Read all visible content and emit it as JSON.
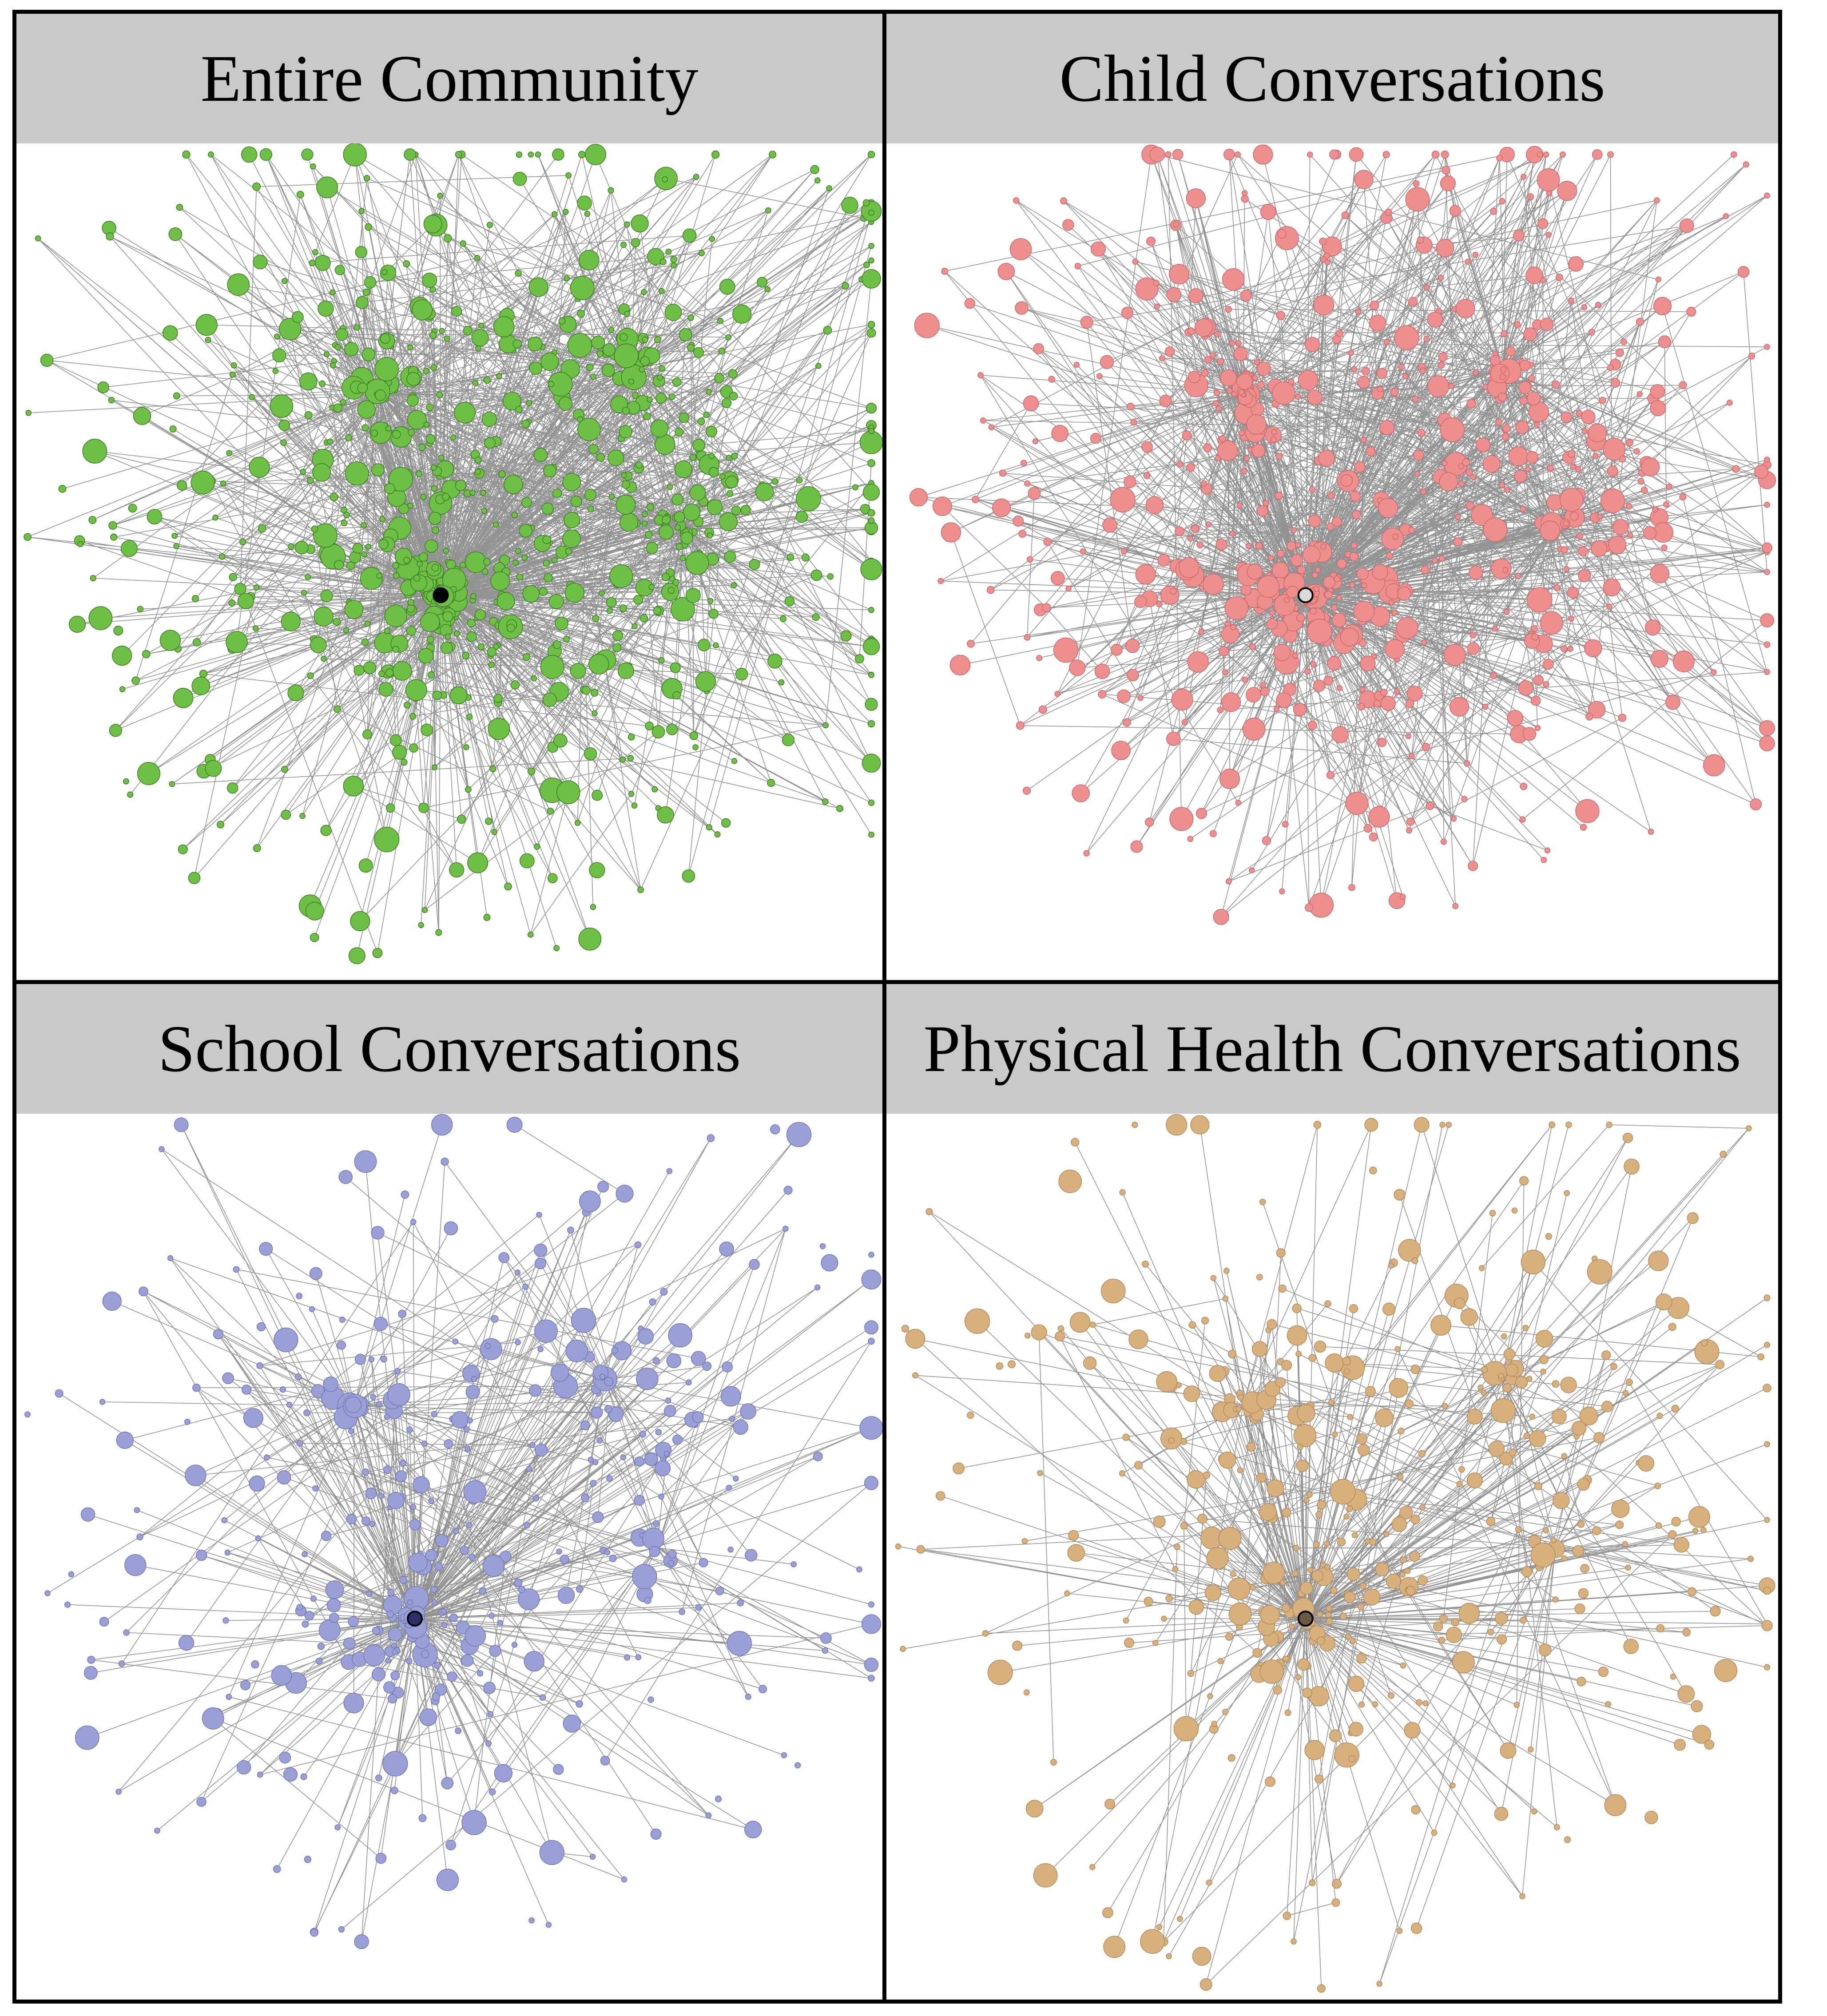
{
  "figure": {
    "panels": [
      {
        "title": "Entire Community",
        "fill": "#6dbf45",
        "stroke": "#3f7a24",
        "nodes": 900,
        "edges": 1700,
        "hubEdges": 520,
        "seed": 11,
        "spread": 1.0,
        "hubX": 0.49,
        "hubY": 0.54,
        "hubColor": "#000000"
      },
      {
        "title": "Child Conversations",
        "fill": "#ee8f8f",
        "stroke": "#c86a6a",
        "nodes": 760,
        "edges": 1500,
        "hubEdges": 560,
        "seed": 23,
        "spread": 0.95,
        "hubX": 0.47,
        "hubY": 0.54,
        "hubColor": "#d9d9d9"
      },
      {
        "title": "School Conversations",
        "fill": "#9aa0d6",
        "stroke": "#7177b5",
        "nodes": 420,
        "edges": 420,
        "hubEdges": 230,
        "seed": 37,
        "spread": 0.9,
        "hubX": 0.46,
        "hubY": 0.57,
        "hubColor": "#2c2f6a"
      },
      {
        "title": "Physical Health Conversations",
        "fill": "#d7b07e",
        "stroke": "#b18a58",
        "nodes": 470,
        "edges": 340,
        "hubEdges": 230,
        "seed": 53,
        "spread": 1.0,
        "hubX": 0.47,
        "hubY": 0.57,
        "hubColor": "#6b5a44"
      }
    ]
  }
}
